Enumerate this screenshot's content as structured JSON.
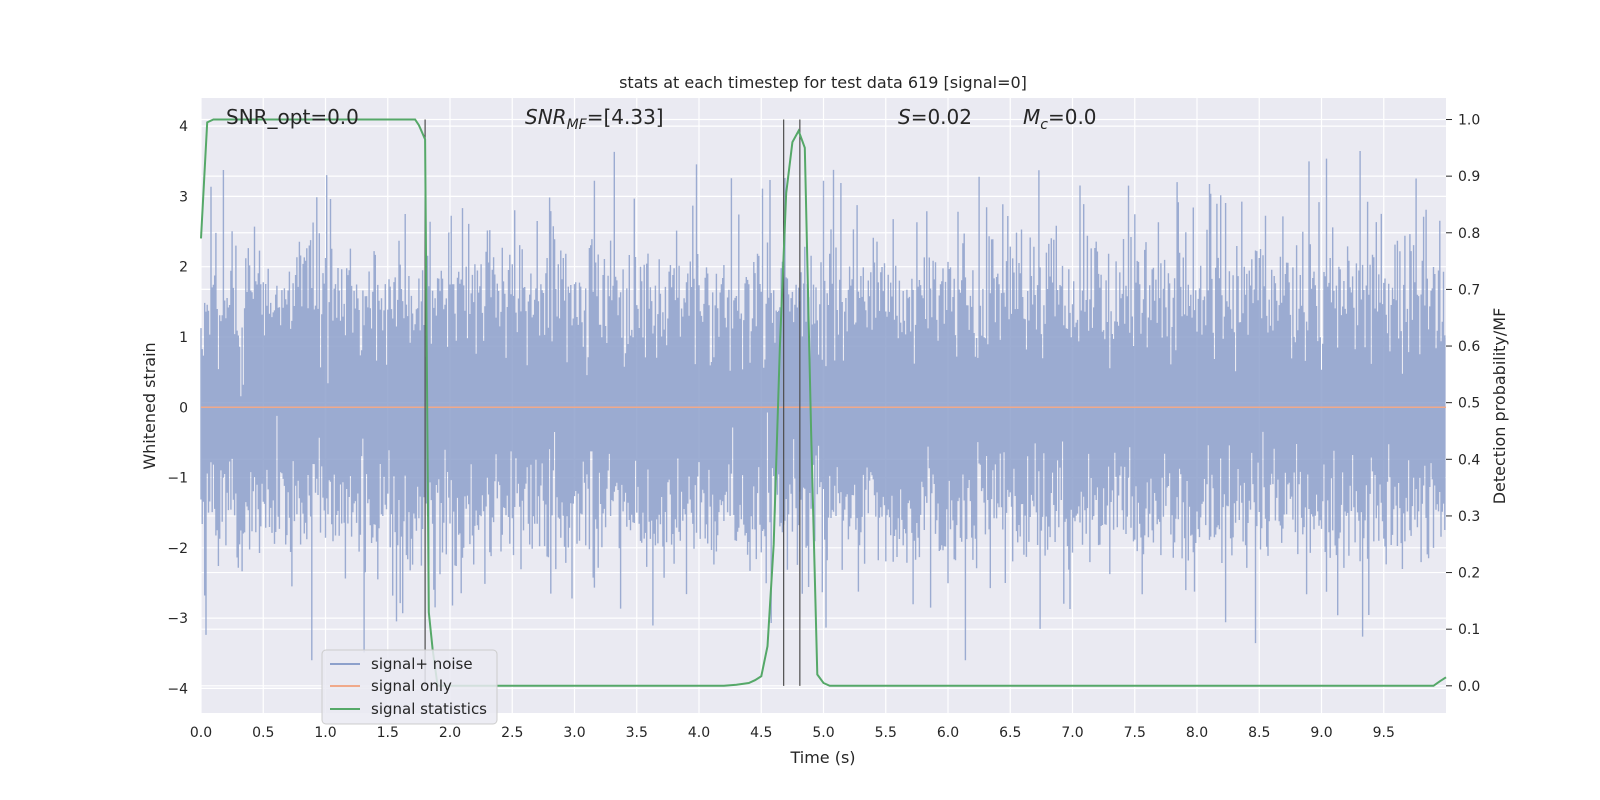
{
  "chart_data": {
    "type": "line",
    "title": "stats at each timestep for test data 619 [signal=0]",
    "xlabel": "Time (s)",
    "ylabel": "Whitened strain",
    "ylabel_right": "Detection probability/MF",
    "xlim": [
      0.0,
      10.0
    ],
    "ylim": [
      -4.35,
      4.4
    ],
    "ylim_right": [
      -0.048,
      1.038
    ],
    "x_ticks": [
      "0.0",
      "0.5",
      "1.0",
      "1.5",
      "2.0",
      "2.5",
      "3.0",
      "3.5",
      "4.0",
      "4.5",
      "5.0",
      "5.5",
      "6.0",
      "6.5",
      "7.0",
      "7.5",
      "8.0",
      "8.5",
      "9.0",
      "9.5"
    ],
    "x_tick_values": [
      0.0,
      0.5,
      1.0,
      1.5,
      2.0,
      2.5,
      3.0,
      3.5,
      4.0,
      4.5,
      5.0,
      5.5,
      6.0,
      6.5,
      7.0,
      7.5,
      8.0,
      8.5,
      9.0,
      9.5
    ],
    "y_ticks": [
      "4",
      "3",
      "2",
      "1",
      "0",
      "−1",
      "−2",
      "−3",
      "−4"
    ],
    "y_tick_values": [
      4,
      3,
      2,
      1,
      0,
      -1,
      -2,
      -3,
      -4
    ],
    "y_ticks_right": [
      "1.0",
      "0.9",
      "0.8",
      "0.7",
      "0.6",
      "0.5",
      "0.4",
      "0.3",
      "0.2",
      "0.1",
      "0.0"
    ],
    "y_tick_values_right": [
      1.0,
      0.9,
      0.8,
      0.7,
      0.6,
      0.5,
      0.4,
      0.3,
      0.2,
      0.1,
      0.0
    ],
    "grid": true,
    "legend_placement": "lower-left",
    "legend": [
      {
        "label": "signal+ noise",
        "color": "#8da0cb"
      },
      {
        "label": "signal only",
        "color": "#f0a98a"
      },
      {
        "label": "signal statistics",
        "color": "#55a868"
      }
    ],
    "annotations": {
      "snr_opt": "SNR_opt=0.0",
      "snr_mf_main": "SNR",
      "snr_mf_sub": "MF",
      "snr_mf_value": "=[4.33]",
      "s_main": "S",
      "s_value": "=0.02",
      "mc_main": "M",
      "mc_sub": "c",
      "mc_value": "=0.0"
    },
    "vertical_markers_x": [
      1.8,
      4.68,
      4.81
    ],
    "signal_plus_noise": {
      "description_range": [
        -3.6,
        3.9
      ],
      "typical_envelope": [
        -2.5,
        2.7
      ]
    },
    "signal_only_level": 0.0,
    "signal_statistics": {
      "x": [
        0.0,
        0.05,
        0.1,
        0.2,
        0.5,
        1.0,
        1.5,
        1.72,
        1.75,
        1.8,
        1.83,
        1.86,
        1.9,
        2.0,
        2.5,
        3.0,
        3.5,
        4.0,
        4.2,
        4.3,
        4.4,
        4.45,
        4.5,
        4.55,
        4.6,
        4.65,
        4.7,
        4.75,
        4.8,
        4.85,
        4.9,
        4.95,
        5.0,
        5.05,
        5.1,
        5.5,
        6.0,
        7.0,
        8.0,
        9.0,
        9.5,
        9.9,
        9.95,
        10.0
      ],
      "y": [
        0.79,
        0.995,
        1.0,
        1.0,
        1.0,
        1.0,
        1.0,
        1.0,
        0.99,
        0.965,
        0.13,
        0.065,
        0.0,
        0.0,
        0.0,
        0.0,
        0.0,
        0.0,
        0.0,
        0.002,
        0.005,
        0.01,
        0.017,
        0.07,
        0.25,
        0.6,
        0.87,
        0.96,
        0.98,
        0.95,
        0.45,
        0.02,
        0.005,
        0.0,
        0.0,
        0.0,
        0.0,
        0.0,
        0.0,
        0.0,
        0.0,
        0.0,
        0.008,
        0.015
      ]
    }
  }
}
